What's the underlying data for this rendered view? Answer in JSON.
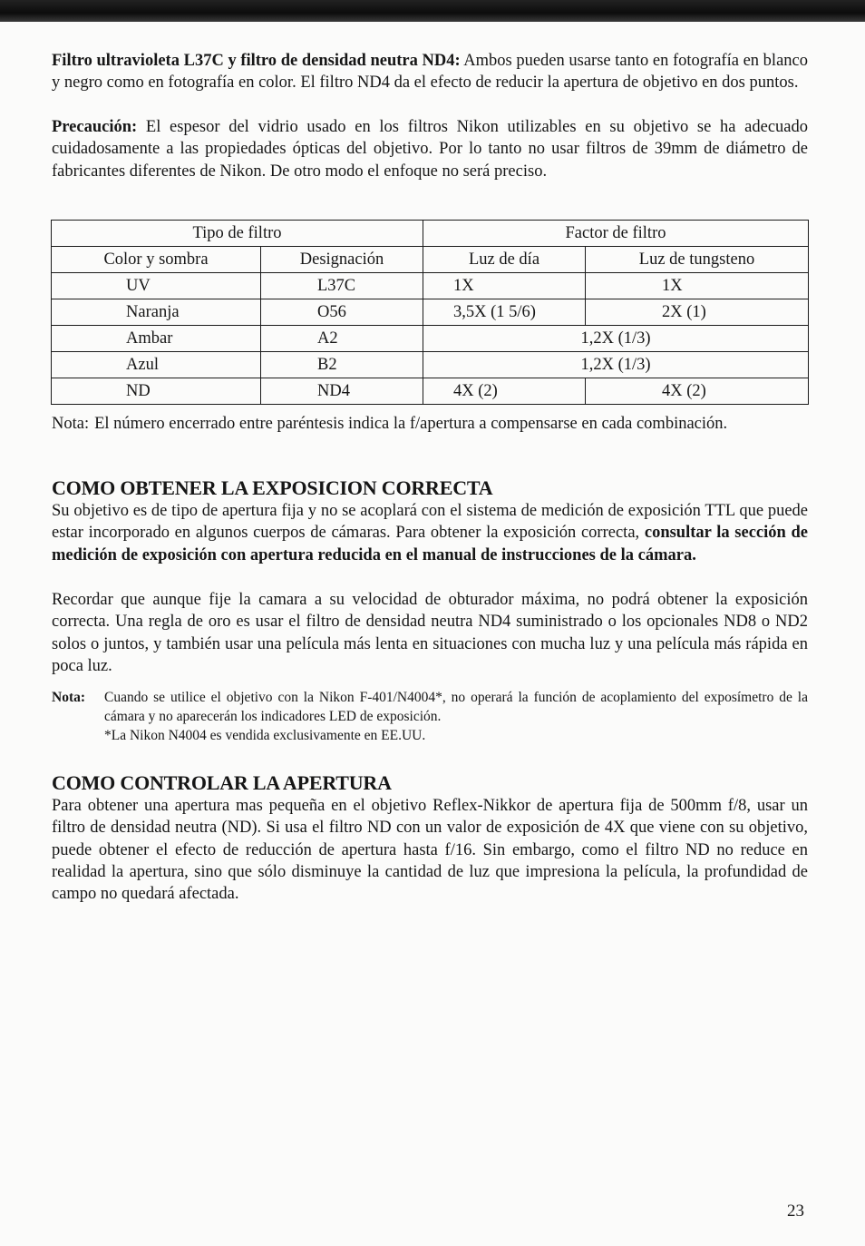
{
  "intro": {
    "p1_bold": "Filtro ultravioleta L37C y filtro de densidad neutra ND4:",
    "p1_text": " Ambos pueden usarse tanto en fotografía en blanco y negro como en fotografía en color. El filtro ND4 da el efecto de reducir la apertura de objetivo en dos puntos.",
    "p2_bold": "Precaución:",
    "p2_text": " El espesor del vidrio usado en los filtros Nikon utilizables en su objetivo se ha adecuado cuidadosamente a las propiedades ópticas del objetivo. Por lo tanto no usar filtros de 39mm de diámetro de fabricantes diferentes de Nikon. De otro modo el enfoque no será preciso."
  },
  "table": {
    "group_headers": [
      "Tipo de filtro",
      "Factor de filtro"
    ],
    "headers": [
      "Color y sombra",
      "Designación",
      "Luz de día",
      "Luz de tungsteno"
    ],
    "rows": [
      {
        "color": "UV",
        "designacion": "L37C",
        "dia": "1X",
        "tungsteno": "1X"
      },
      {
        "color": "Naranja",
        "designacion": "O56",
        "dia": "3,5X (1 5/6)",
        "tungsteno": "2X (1)"
      },
      {
        "color": "Ambar",
        "designacion": "A2",
        "ambos": "1,2X (1/3)"
      },
      {
        "color": "Azul",
        "designacion": "B2",
        "ambos": "1,2X (1/3)"
      },
      {
        "color": "ND",
        "designacion": "ND4",
        "dia": "4X (2)",
        "tungsteno": "4X (2)"
      }
    ],
    "note_label": "Nota:",
    "note_text": "El número encerrado entre paréntesis indica la f/apertura a compensarse en cada combinación."
  },
  "section1": {
    "title": "COMO OBTENER LA EXPOSICION CORRECTA",
    "p1_text": "Su objetivo es de tipo de apertura fija y no se acoplará con el sistema de medición de exposición TTL que puede estar incorporado en algunos cuerpos de cámaras. Para obtener la exposición correcta, ",
    "p1_bold": "consultar la sección de medición de exposición con apertura reducida en el manual de instrucciones de la cámara.",
    "p2": "Recordar que aunque fije la camara a su velocidad de obturador máxima, no podrá obtener la exposición correcta. Una regla de oro es usar el filtro de densidad neutra ND4 suministrado o los opcionales ND8 o ND2 solos o juntos, y también usar una película más lenta en situaciones con mucha luz y una película más rápida en poca luz.",
    "note_label": "Nota:",
    "note_text": "Cuando se utilice el objetivo con la Nikon F-401/N4004*, no operará la función de acoplamiento del exposímetro de la cámara y no aparecerán los indicadores LED de exposición.",
    "note_footnote": "*La Nikon N4004 es vendida exclusivamente en EE.UU."
  },
  "section2": {
    "title": "COMO CONTROLAR LA APERTURA",
    "p1": "Para obtener una apertura mas pequeña en el objetivo Reflex-Nikkor de apertura fija de 500mm f/8, usar un filtro de densidad neutra (ND). Si usa el filtro ND con un valor de exposición de 4X que viene con su objetivo, puede obtener el efecto de reducción de apertura hasta f/16. Sin embargo, como el filtro ND no reduce en realidad la apertura, sino que sólo disminuye la cantidad de luz que impresiona la película, la profundidad de campo no quedará afectada."
  },
  "page_number": "23"
}
